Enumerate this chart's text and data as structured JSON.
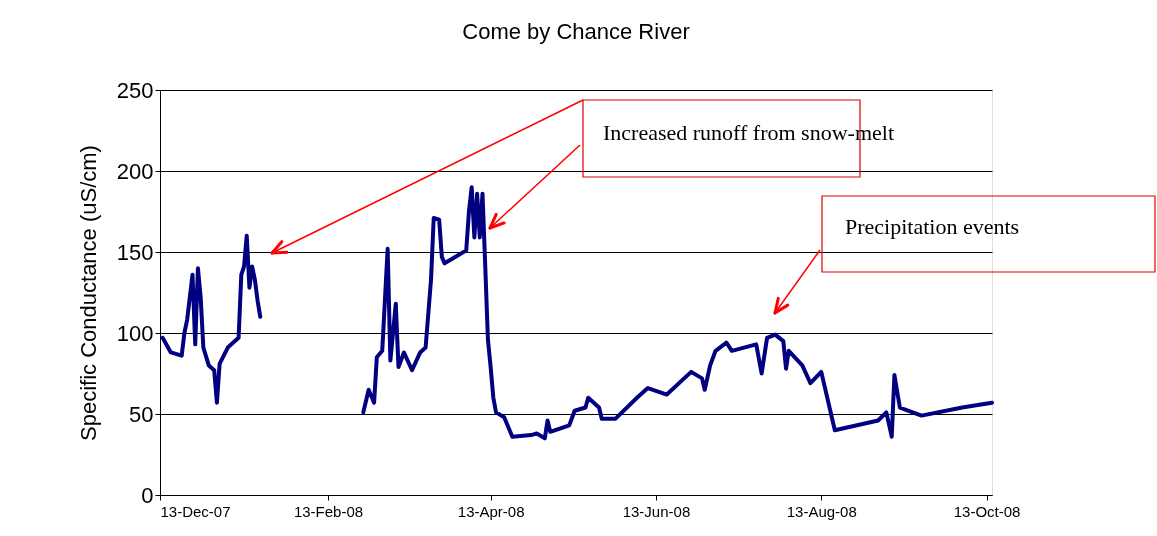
{
  "chart_data": {
    "type": "line",
    "title": "Come by Chance River",
    "ylabel": "Specific Conductance (uS/cm)",
    "x": [
      "2007-12-14",
      "2007-12-15",
      "2007-12-17",
      "2007-12-21",
      "2007-12-22",
      "2007-12-23",
      "2007-12-25",
      "2007-12-26",
      "2007-12-27",
      "2007-12-28",
      "2007-12-29",
      "2007-12-31",
      "2008-01-02",
      "2008-01-03",
      "2008-01-04",
      "2008-01-07",
      "2008-01-11",
      "2008-01-12",
      "2008-01-13",
      "2008-01-14",
      "2008-01-15",
      "2008-01-16",
      "2008-01-17",
      "2008-01-18",
      "2008-01-19",
      "2008-02-10",
      "2008-02-26",
      "2008-02-28",
      "2008-03-01",
      "2008-03-02",
      "2008-03-04",
      "2008-03-06",
      "2008-03-07",
      "2008-03-09",
      "2008-03-10",
      "2008-03-12",
      "2008-03-15",
      "2008-03-18",
      "2008-03-20",
      "2008-03-22",
      "2008-03-23",
      "2008-03-25",
      "2008-03-26",
      "2008-03-27",
      "2008-04-04",
      "2008-04-05",
      "2008-04-06",
      "2008-04-07",
      "2008-04-08",
      "2008-04-09",
      "2008-04-10",
      "2008-04-11",
      "2008-04-12",
      "2008-04-13",
      "2008-04-14",
      "2008-04-15",
      "2008-04-18",
      "2008-04-21",
      "2008-04-28",
      "2008-04-30",
      "2008-05-03",
      "2008-05-04",
      "2008-05-05",
      "2008-05-12",
      "2008-05-14",
      "2008-05-18",
      "2008-05-19",
      "2008-05-23",
      "2008-05-24",
      "2008-05-29",
      "2008-06-06",
      "2008-06-10",
      "2008-06-17",
      "2008-06-26",
      "2008-06-30",
      "2008-07-01",
      "2008-07-03",
      "2008-07-05",
      "2008-07-09",
      "2008-07-11",
      "2008-07-20",
      "2008-07-22",
      "2008-07-24",
      "2008-07-27",
      "2008-07-30",
      "2008-07-31",
      "2008-08-01",
      "2008-08-06",
      "2008-08-09",
      "2008-08-13",
      "2008-08-18",
      "2008-09-03",
      "2008-09-06",
      "2008-09-08",
      "2008-09-09",
      "2008-09-11",
      "2008-09-19",
      "2008-10-04",
      "2008-10-15"
    ],
    "series": [
      {
        "color": "#000080",
        "values": [
          97,
          94,
          88,
          86,
          100,
          108,
          136,
          93,
          140,
          122,
          91,
          80,
          77,
          57,
          81,
          91,
          97,
          136,
          141,
          160,
          128,
          141,
          133,
          120,
          110,
          null,
          51,
          65,
          57,
          85,
          89,
          152,
          83,
          118,
          79,
          88,
          77,
          88,
          91,
          133,
          171,
          170,
          147,
          143,
          151,
          175,
          190,
          159,
          186,
          159,
          186,
          142,
          96,
          79,
          60,
          51,
          48,
          36,
          37,
          38,
          35,
          46,
          39,
          43,
          52,
          54,
          60,
          54,
          47,
          47,
          60,
          66,
          62,
          76,
          72,
          65,
          80,
          89,
          94,
          89,
          93,
          75,
          97,
          99,
          95,
          78,
          89,
          80,
          69,
          76,
          40,
          46,
          51,
          36,
          74,
          54,
          49,
          54,
          57
        ]
      }
    ],
    "xlim": [
      "2007-12-13",
      "2008-10-15"
    ],
    "xticks": [
      {
        "value": "2007-12-13",
        "label": "13-Dec-07"
      },
      {
        "value": "2008-02-13",
        "label": "13-Feb-08"
      },
      {
        "value": "2008-04-13",
        "label": "13-Apr-08"
      },
      {
        "value": "2008-06-13",
        "label": "13-Jun-08"
      },
      {
        "value": "2008-08-13",
        "label": "13-Aug-08"
      },
      {
        "value": "2008-10-13",
        "label": "13-Oct-08"
      }
    ],
    "ylim": [
      0,
      250
    ],
    "yticks": [
      0,
      50,
      100,
      150,
      200,
      250
    ],
    "grid": "y",
    "line_style": "solid",
    "marker": "none",
    "annotations": [
      "Increased runoff from snow-melt",
      "Precipitation events"
    ]
  }
}
